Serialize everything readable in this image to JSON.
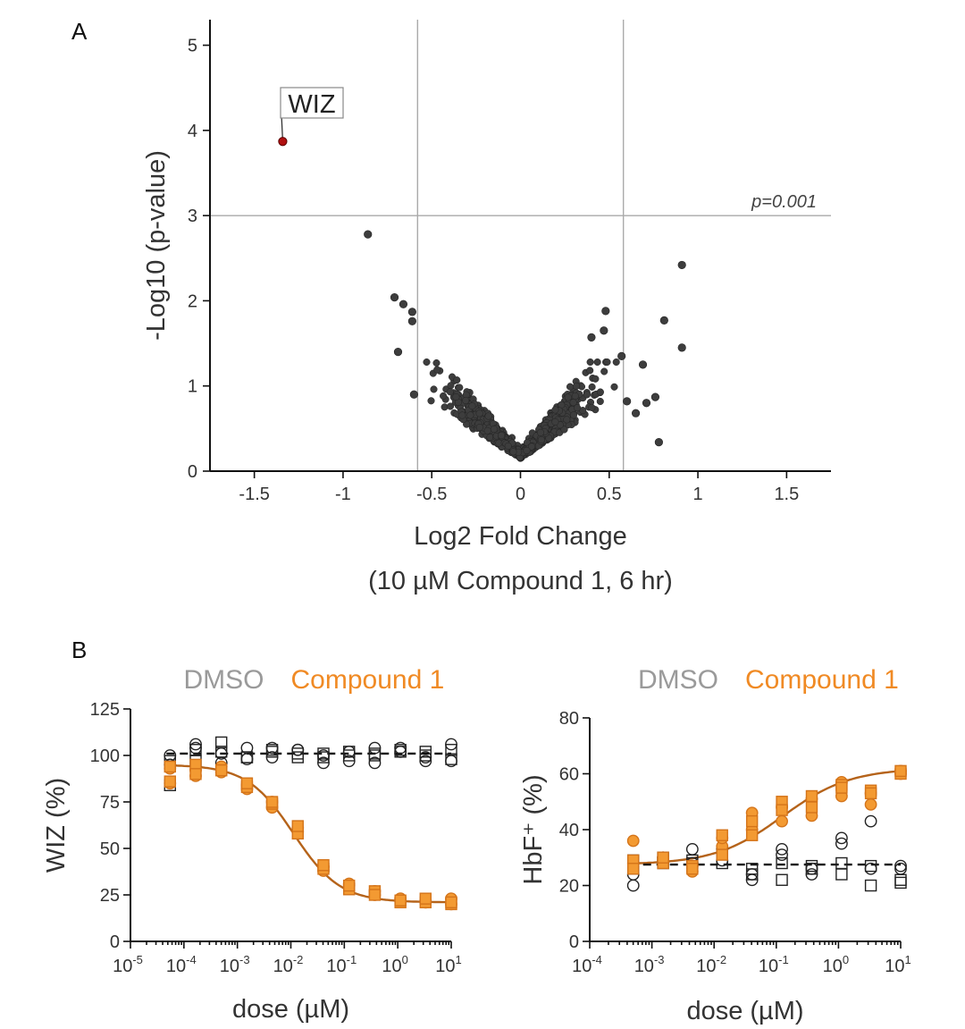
{
  "colors": {
    "point": "#3d3d3d",
    "highlight": "#b01010",
    "gridline": "#aaaaaa",
    "orange_fill": "#f39a32",
    "orange_edge": "#d4741a",
    "fit_orange": "#b5631a",
    "dmso": "#9a9a9a",
    "compound": "#f08a24"
  },
  "chart_data": [
    {
      "id": "A",
      "panel_label": "A",
      "type": "scatter",
      "title": "",
      "xlabel_line1": "Log2 Fold Change",
      "xlabel_line2": "(10 µM Compound 1, 6 hr)",
      "ylabel": "-Log10 (p-value)",
      "xlim": [
        -1.75,
        1.75
      ],
      "ylim": [
        0,
        5.3
      ],
      "xticks": [
        -1.5,
        -1,
        -0.5,
        0,
        0.5,
        1,
        1.5
      ],
      "xtick_labels": [
        "-1.5",
        "-1",
        "-0.5",
        "0",
        "0.5",
        "1",
        "1.5"
      ],
      "yticks": [
        0,
        1,
        2,
        3,
        4,
        5
      ],
      "ytick_labels": [
        "0",
        "1",
        "2",
        "3",
        "4",
        "5"
      ],
      "threshold_y": 3,
      "threshold_label": "p=0.001",
      "fold_change_cutoffs": [
        -0.58,
        0.58
      ],
      "highlight": {
        "label": "WIZ",
        "x": -1.34,
        "y": 3.87
      },
      "outliers": [
        {
          "x": -0.86,
          "y": 2.78
        },
        {
          "x": -0.71,
          "y": 2.04
        },
        {
          "x": -0.66,
          "y": 1.96
        },
        {
          "x": -0.61,
          "y": 1.87
        },
        {
          "x": -0.61,
          "y": 1.76
        },
        {
          "x": -0.69,
          "y": 1.4
        },
        {
          "x": -0.6,
          "y": 0.9
        },
        {
          "x": 0.91,
          "y": 2.42
        },
        {
          "x": 0.81,
          "y": 1.77
        },
        {
          "x": 0.91,
          "y": 1.45
        },
        {
          "x": 0.48,
          "y": 1.88
        },
        {
          "x": 0.47,
          "y": 1.65
        },
        {
          "x": 0.4,
          "y": 1.57
        },
        {
          "x": 0.69,
          "y": 1.25
        },
        {
          "x": 0.57,
          "y": 1.35
        },
        {
          "x": 0.76,
          "y": 0.87
        },
        {
          "x": 0.65,
          "y": 0.68
        },
        {
          "x": 0.71,
          "y": 0.8
        },
        {
          "x": 0.78,
          "y": 0.34
        },
        {
          "x": 0.6,
          "y": 0.82
        }
      ],
      "v_shape_cloud": {
        "approx_points": 1400,
        "min_y": 0.15,
        "slope_left": 2.2,
        "slope_right": 2.4
      }
    },
    {
      "id": "B1",
      "panel_label": "B",
      "type": "scatter",
      "title": "",
      "legend": [
        "DMSO",
        "Compound 1"
      ],
      "xlabel": "dose (µM)",
      "ylabel": "WIZ (%)",
      "xscale": "log10",
      "xlim_exp": [
        -5,
        1
      ],
      "ylim": [
        0,
        125
      ],
      "xtick_exps": [
        -5,
        -4,
        -3,
        -2,
        -1,
        0,
        1
      ],
      "yticks": [
        0,
        25,
        50,
        75,
        100,
        125
      ],
      "doses_exp": [
        -4.26,
        -3.78,
        -3.3,
        -2.82,
        -2.35,
        -1.87,
        -1.39,
        -0.91,
        -0.43,
        0.05,
        0.52,
        1
      ],
      "dmso_fit_level": 101,
      "dmso_circles": [
        95,
        100,
        104,
        106,
        101,
        96,
        104,
        98,
        104,
        99,
        103,
        103,
        96,
        100,
        97,
        102,
        96,
        104,
        104,
        102,
        97,
        99,
        106,
        97
      ],
      "dmso_squares": [
        84,
        97,
        103,
        97,
        107,
        102,
        99,
        99,
        103,
        102,
        101,
        99,
        101,
        99,
        102,
        100,
        101,
        100,
        102,
        103,
        100,
        102,
        103,
        98
      ],
      "compound_fit": {
        "top": 95,
        "bottom": 21,
        "ec50_exp": -1.95,
        "hill": 1.0
      },
      "compound_circles": [
        93,
        85,
        92,
        89,
        91,
        94,
        82,
        84,
        75,
        72,
        59,
        61,
        40,
        38,
        30,
        31,
        25,
        27,
        22,
        23,
        21,
        22,
        20,
        23
      ],
      "compound_squares": [
        94,
        86,
        95,
        90,
        92,
        92,
        83,
        85,
        74,
        75,
        58,
        62,
        39,
        41,
        28,
        30,
        27,
        25,
        21,
        22,
        21,
        23,
        20,
        21
      ]
    },
    {
      "id": "B2",
      "panel_label": "",
      "type": "scatter",
      "title": "",
      "legend": [
        "DMSO",
        "Compound 1"
      ],
      "xlabel": "dose (µM)",
      "ylabel": "HbF⁺ (%)",
      "xscale": "log10",
      "xlim_exp": [
        -4,
        1
      ],
      "ylim": [
        0,
        80
      ],
      "xtick_exps": [
        -4,
        -3,
        -2,
        -1,
        0,
        1
      ],
      "yticks": [
        0,
        20,
        40,
        60,
        80
      ],
      "doses_exp": [
        -3.3,
        -2.82,
        -2.35,
        -1.87,
        -1.39,
        -0.91,
        -0.43,
        0.05,
        0.52,
        1
      ],
      "dmso_fit_level": 27.5,
      "dmso_circles": [
        20,
        24,
        29,
        30,
        33,
        28,
        33,
        29,
        22,
        24,
        31,
        33,
        24,
        26,
        35,
        37,
        43,
        26,
        27,
        26
      ],
      "dmso_squares": [
        26,
        29,
        28,
        30,
        29,
        28,
        28,
        32,
        24,
        26,
        22,
        28,
        26,
        27,
        24,
        28,
        20,
        27,
        22,
        21
      ],
      "compound_fit": {
        "bottom": 27.5,
        "top": 62,
        "ec50_exp": -0.9,
        "hill": 0.8
      },
      "compound_circles": [
        36,
        28,
        30,
        29,
        25,
        27,
        34,
        37,
        40,
        46,
        43,
        48,
        51,
        45,
        57,
        52,
        53,
        49,
        61,
        60
      ],
      "compound_squares": [
        29,
        26,
        28,
        30,
        27,
        26,
        38,
        31,
        43,
        38,
        50,
        47,
        52,
        48,
        56,
        55,
        54,
        53,
        60,
        61
      ]
    }
  ]
}
